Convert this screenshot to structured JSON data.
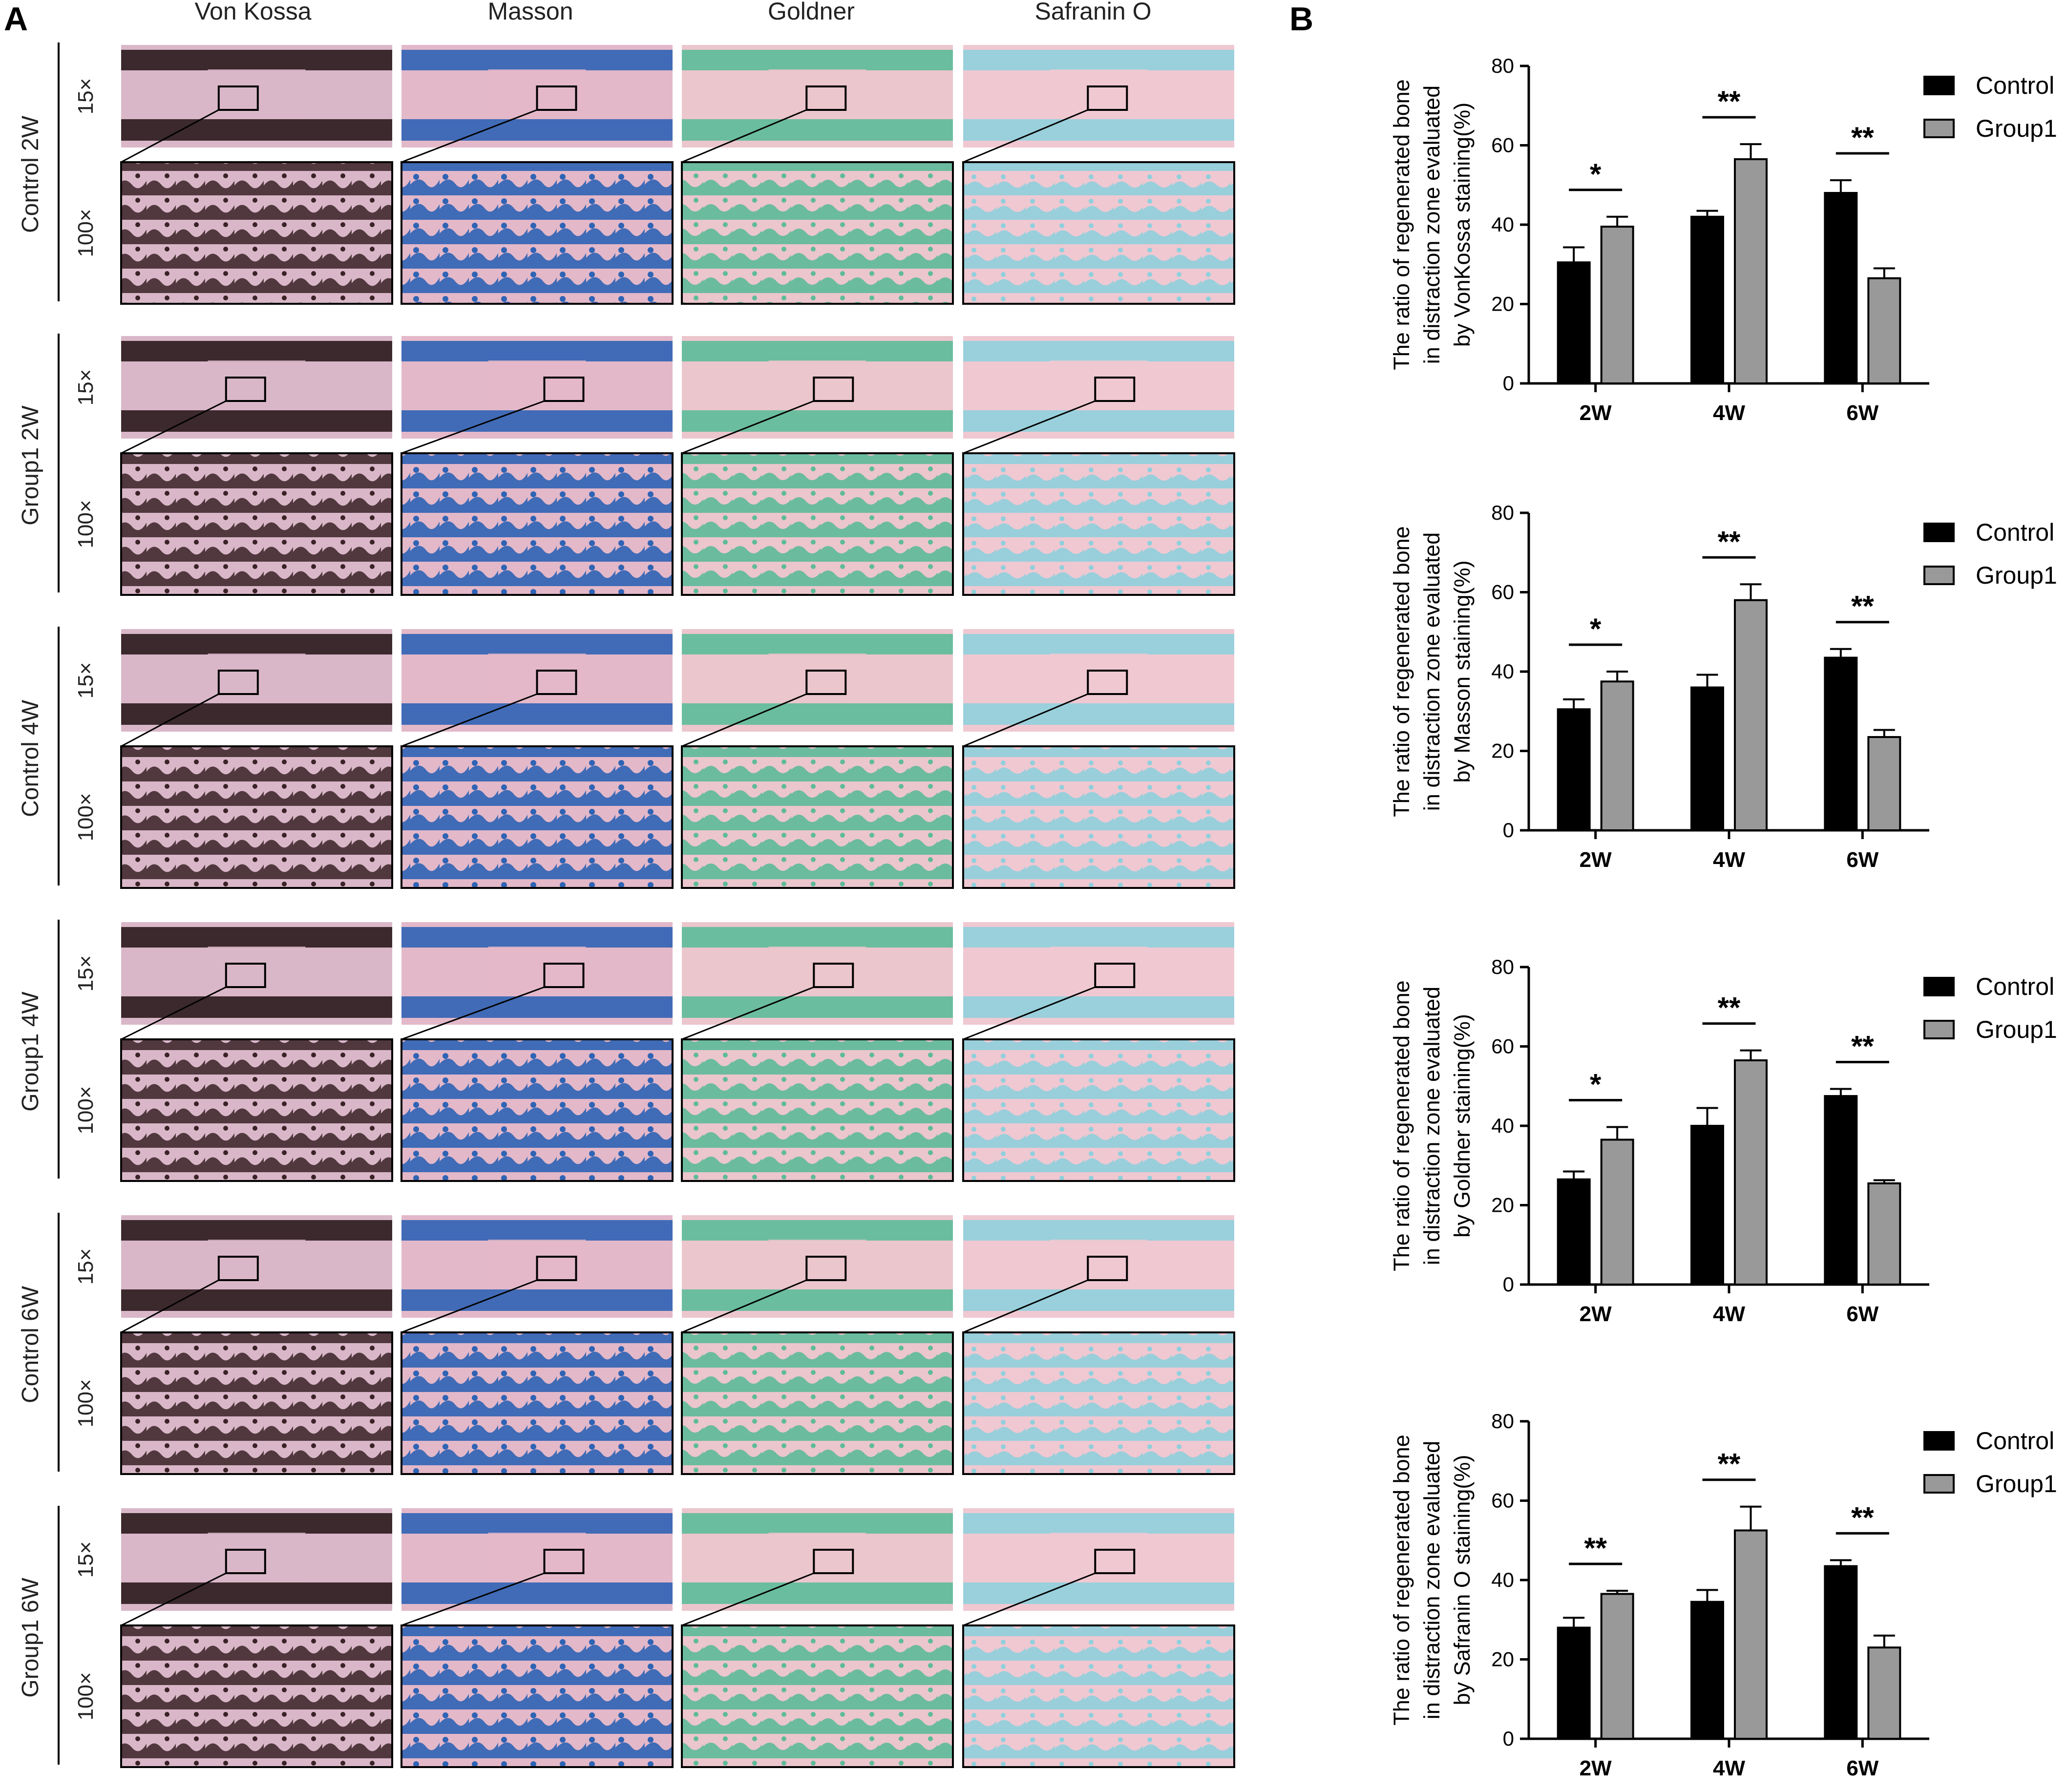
{
  "panel_a": {
    "letter": "A",
    "columns": [
      "Von Kossa",
      "Masson",
      "Goldner",
      "Safranin O"
    ],
    "rows": [
      {
        "label": "Control 2W"
      },
      {
        "label": "Group1 2W"
      },
      {
        "label": "Control 4W"
      },
      {
        "label": "Group1 4W"
      },
      {
        "label": "Control 6W"
      },
      {
        "label": "Group1 6W"
      }
    ],
    "magnifications": {
      "low": "15×",
      "high": "100×"
    },
    "stain_colors": {
      "von_kossa": {
        "bg": "#d9b7c8",
        "fg": "#2a1a1c"
      },
      "masson": {
        "bg": "#e3b8c9",
        "fg": "#2f63b4"
      },
      "goldner": {
        "bg": "#ebc6cc",
        "fg": "#5dbb9a"
      },
      "safranin_o": {
        "bg": "#efc8d2",
        "fg": "#8fd0dc"
      }
    }
  },
  "panel_b": {
    "letter": "B",
    "legend": [
      "Control",
      "Group1"
    ],
    "colors": {
      "control": "#000000",
      "group1": "#999999"
    }
  },
  "chart_data": [
    {
      "type": "bar",
      "categories": [
        "2W",
        "4W",
        "6W"
      ],
      "ylabel_lines": [
        "The ratio of regenerated bone",
        "in distraction zone evaluated",
        "by VonKossa staining(%)"
      ],
      "ylim": [
        0,
        80
      ],
      "yticks": [
        "0",
        "20",
        "40",
        "60",
        "80"
      ],
      "series": [
        {
          "name": "Control",
          "values": [
            30.5,
            42,
            48
          ],
          "errors": [
            3.8,
            1.5,
            3.2
          ]
        },
        {
          "name": "Group1",
          "values": [
            39.5,
            56.5,
            26.5
          ],
          "errors": [
            2.5,
            3.8,
            2.5
          ]
        }
      ],
      "significance": [
        "*",
        "**",
        "**"
      ]
    },
    {
      "type": "bar",
      "categories": [
        "2W",
        "4W",
        "6W"
      ],
      "ylabel_lines": [
        "The ratio of regenerated bone",
        "in distraction zone evaluated",
        "by Masson staining(%)"
      ],
      "ylim": [
        0,
        80
      ],
      "yticks": [
        "0",
        "20",
        "40",
        "60",
        "80"
      ],
      "series": [
        {
          "name": "Control",
          "values": [
            30.5,
            36,
            43.5
          ],
          "errors": [
            2.5,
            3.2,
            2.2
          ]
        },
        {
          "name": "Group1",
          "values": [
            37.5,
            58,
            23.5
          ],
          "errors": [
            2.5,
            4,
            1.8
          ]
        }
      ],
      "significance": [
        "*",
        "**",
        "**"
      ]
    },
    {
      "type": "bar",
      "categories": [
        "2W",
        "4W",
        "6W"
      ],
      "ylabel_lines": [
        "The ratio of regenerated bone",
        "in distraction zone evaluated",
        "by Goldner staining(%)"
      ],
      "ylim": [
        0,
        80
      ],
      "yticks": [
        "0",
        "20",
        "40",
        "60",
        "80"
      ],
      "series": [
        {
          "name": "Control",
          "values": [
            26.5,
            40,
            47.5
          ],
          "errors": [
            2,
            4.5,
            1.8
          ]
        },
        {
          "name": "Group1",
          "values": [
            36.5,
            56.5,
            25.5
          ],
          "errors": [
            3.2,
            2.5,
            0.8
          ]
        }
      ],
      "significance": [
        "*",
        "**",
        "**"
      ]
    },
    {
      "type": "bar",
      "categories": [
        "2W",
        "4W",
        "6W"
      ],
      "ylabel_lines": [
        "The ratio of regenerated bone",
        "in distraction zone evaluated",
        "by Safranin O staining(%)"
      ],
      "ylim": [
        0,
        80
      ],
      "yticks": [
        "0",
        "20",
        "40",
        "60",
        "80"
      ],
      "series": [
        {
          "name": "Control",
          "values": [
            28,
            34.5,
            43.5
          ],
          "errors": [
            2.5,
            3,
            1.5
          ]
        },
        {
          "name": "Group1",
          "values": [
            36.5,
            52.5,
            23
          ],
          "errors": [
            0.8,
            6,
            3
          ]
        }
      ],
      "significance": [
        "**",
        "**",
        "**"
      ]
    }
  ]
}
